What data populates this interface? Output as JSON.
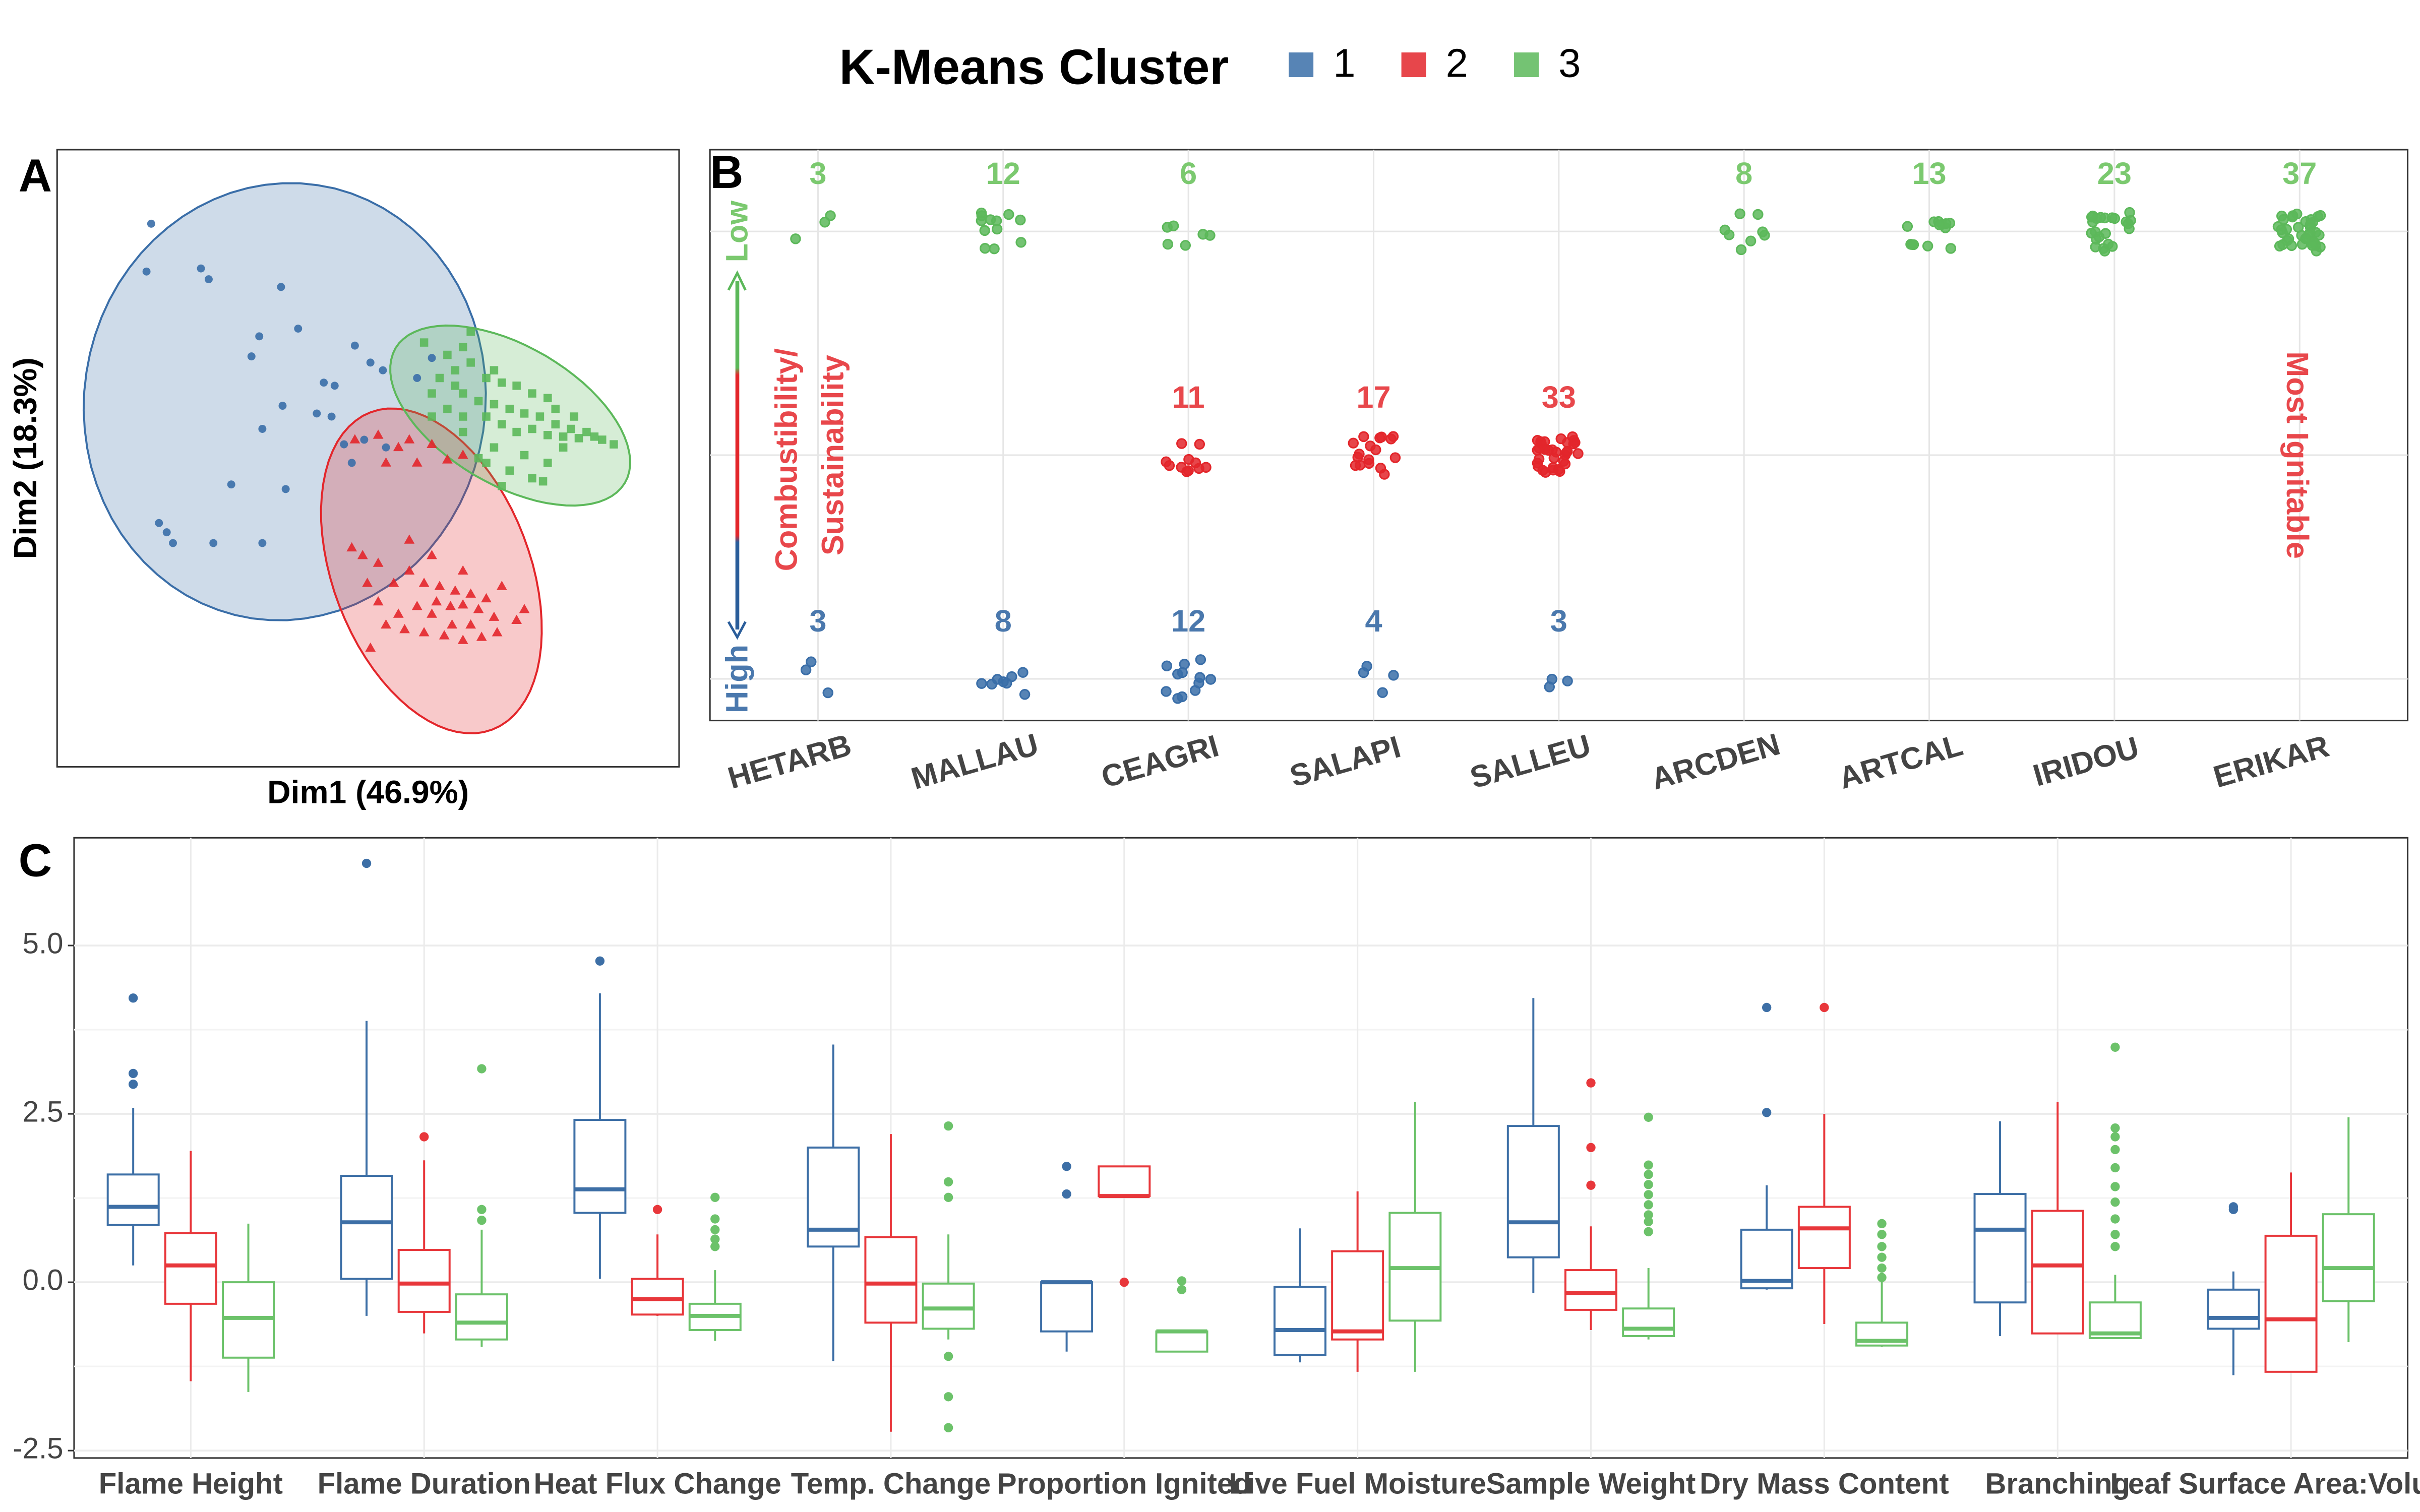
{
  "legend": {
    "title": "K-Means Cluster"
  },
  "chart_data": [
    {
      "type": "scatter",
      "panel_label": "A",
      "x_label": "Dim1 (46.9%)",
      "y_label": "Dim2 (18.3%)",
      "xlim": [
        -4,
        4
      ],
      "ylim": [
        -4,
        4
      ],
      "ellipses": true,
      "series": [
        {
          "name": "1",
          "color": "#3a6ea8",
          "marker": "circle",
          "x": [
            -2.79,
            -2.85,
            -2.15,
            -2.05,
            -1.12,
            -1.4,
            -0.9,
            -1.5,
            -0.57,
            -0.43,
            -0.17,
            0.19,
            -0.66,
            -0.47,
            -1.1,
            -1.36,
            -0.31,
            -1.76,
            -1.06,
            -2.69,
            -2.59,
            -2.51,
            -1.99,
            -1.36,
            -0.05,
            0.23,
            0.63,
            0.82,
            0.03,
            -0.21
          ],
          "y": [
            3.04,
            2.42,
            2.46,
            2.32,
            2.22,
            1.58,
            1.68,
            1.32,
            0.98,
            0.94,
            1.46,
            1.14,
            0.58,
            0.54,
            0.68,
            0.38,
            0.18,
            -0.34,
            -0.4,
            -0.84,
            -0.96,
            -1.1,
            -1.1,
            -1.1,
            0.24,
            0.14,
            1.04,
            1.3,
            1.24,
            -0.06
          ]
        },
        {
          "name": "2",
          "color": "#e3262b",
          "marker": "triangle",
          "x": [
            -0.17,
            0.13,
            0.39,
            0.53,
            0.82,
            1.02,
            1.22,
            0.23,
            0.63,
            -0.21,
            -0.07,
            0.13,
            0.53,
            0.72,
            0.92,
            1.12,
            1.32,
            1.52,
            0.88,
            1.06,
            1.22,
            1.42,
            1.62,
            1.91,
            0.63,
            0.39,
            0.23,
            0.47,
            0.72,
            0.98,
            1.22,
            1.46,
            1.66,
            2.01,
            0.13,
            -0.01,
            0.33,
            0.53,
            0.82,
            0.03,
            1.22,
            1.72,
            1.08,
            1.32,
            0.82
          ],
          "y": [
            0.24,
            0.3,
            0.14,
            0.24,
            0.18,
            -0.02,
            0.04,
            -0.06,
            -0.06,
            -1.16,
            -1.26,
            -1.36,
            -1.46,
            -1.62,
            -1.66,
            -1.72,
            -1.76,
            -1.82,
            -1.86,
            -1.92,
            -1.9,
            -1.96,
            -2.06,
            -2.1,
            -1.92,
            -2.02,
            -2.16,
            -2.22,
            -2.26,
            -2.3,
            -2.36,
            -2.32,
            -2.26,
            -1.96,
            -1.86,
            -1.62,
            -1.62,
            -1.06,
            -1.26,
            -2.46,
            -1.46,
            -1.66,
            -2.16,
            -2.16,
            -2.02
          ]
        },
        {
          "name": "3",
          "color": "#5cb85a",
          "marker": "square",
          "x": [
            0.72,
            1.02,
            1.22,
            0.92,
            1.12,
            1.32,
            1.52,
            1.72,
            1.91,
            2.11,
            2.31,
            1.22,
            1.42,
            1.62,
            1.82,
            2.01,
            2.21,
            2.41,
            2.61,
            2.81,
            3.01,
            3.16,
            2.11,
            2.31,
            2.51,
            2.71,
            2.91,
            2.41,
            2.65,
            1.91,
            1.72,
            1.52,
            1.22,
            1.02,
            0.82,
            1.52,
            1.82,
            2.11,
            2.25,
            1.72,
            1.42,
            1.62,
            2.01,
            1.12,
            1.32,
            1.62,
            0.82,
            1.22,
            2.31,
            2.51
          ],
          "y": [
            1.5,
            1.34,
            1.44,
            1.04,
            1.14,
            1.24,
            1.04,
            0.98,
            0.94,
            0.84,
            0.78,
            0.84,
            0.74,
            0.7,
            0.64,
            0.58,
            0.54,
            0.44,
            0.38,
            0.34,
            0.24,
            0.18,
            0.38,
            0.3,
            0.28,
            0.26,
            0.28,
            0.64,
            0.54,
            0.34,
            0.44,
            0.54,
            0.54,
            0.64,
            0.84,
            -0.06,
            -0.16,
            -0.26,
            -0.3,
            -0.36,
            0.0,
            0.14,
            0.04,
            0.94,
            1.64,
            1.14,
            0.54,
            0.34,
            -0.06,
            0.14
          ]
        }
      ]
    },
    {
      "type": "strip",
      "panel_label": "B",
      "categories": [
        "HETARB",
        "MALLAU",
        "CEAGRI",
        "SALAPI",
        "SALLEU",
        "ARCDEN",
        "ARTCAL",
        "IRIDOU",
        "ERIKAR"
      ],
      "series": [
        {
          "color": "#3a6ea8",
          "label_color": "#4a78ad",
          "values": [
            3,
            8,
            12,
            4,
            3,
            null,
            null,
            null,
            null
          ]
        },
        {
          "color": "#e3262b",
          "label_color": "#e8474b",
          "values": [
            null,
            null,
            11,
            17,
            33,
            null,
            null,
            null,
            null
          ]
        },
        {
          "color": "#5cb85a",
          "label_color": "#7bc96f",
          "values": [
            3,
            12,
            6,
            null,
            null,
            8,
            13,
            23,
            37
          ]
        }
      ],
      "annotations": {
        "low": "Low",
        "high": "High",
        "axis_lines": [
          "Combustibility/",
          "Sustainability"
        ],
        "right": "Most Ignitable"
      },
      "grid": true
    },
    {
      "type": "box",
      "panel_label": "C",
      "categories": [
        "Flame Height",
        "Flame Duration",
        "Heat Flux Change",
        "Temp. Change",
        "Proportion Ignited",
        "Live Fuel Moisture",
        "Sample Weight",
        "Dry Mass Content",
        "Branching",
        "Leaf Surface Area:Volume"
      ],
      "ylim": [
        -2.61,
        6.6
      ],
      "yticks": [
        -2.5,
        {
          "value": 0,
          "label": "0.0"
        },
        2.5,
        {
          "value": 5,
          "label": "5.0"
        }
      ],
      "grid": true,
      "series": [
        {
          "color": "#3d6fa6",
          "boxes": [
            {
              "min": 0.25,
              "q1": 0.85,
              "median": 1.12,
              "q3": 1.6,
              "max": 2.59,
              "outliers": [
                2.94,
                3.1,
                4.22
              ]
            },
            {
              "min": -0.5,
              "q1": 0.05,
              "median": 0.89,
              "q3": 1.58,
              "max": 3.88,
              "outliers": [
                6.22
              ]
            },
            {
              "min": 0.05,
              "q1": 1.03,
              "median": 1.38,
              "q3": 2.41,
              "max": 4.29,
              "outliers": [
                4.77
              ]
            },
            {
              "min": -1.17,
              "q1": 0.53,
              "median": 0.78,
              "q3": 2.0,
              "max": 3.53,
              "outliers": []
            },
            {
              "min": -1.03,
              "q1": -0.73,
              "median": 0.0,
              "q3": 0.0,
              "max": 0.0,
              "outliers": [
                1.31,
                1.72
              ]
            },
            {
              "min": -1.19,
              "q1": -1.08,
              "median": -0.71,
              "q3": -0.07,
              "max": 0.8,
              "outliers": []
            },
            {
              "min": -0.16,
              "q1": 0.37,
              "median": 0.89,
              "q3": 2.32,
              "max": 4.22,
              "outliers": []
            },
            {
              "min": -0.11,
              "q1": -0.09,
              "median": 0.02,
              "q3": 0.78,
              "max": 1.44,
              "outliers": [
                2.52,
                4.08
              ]
            },
            {
              "min": -0.8,
              "q1": -0.3,
              "median": 0.78,
              "q3": 1.31,
              "max": 2.39,
              "outliers": []
            },
            {
              "min": -1.38,
              "q1": -0.69,
              "median": -0.53,
              "q3": -0.11,
              "max": 0.16,
              "outliers": [
                1.08,
                1.12
              ]
            }
          ]
        },
        {
          "color": "#e8373b",
          "boxes": [
            {
              "min": -1.47,
              "q1": -0.32,
              "median": 0.25,
              "q3": 0.73,
              "max": 1.95,
              "outliers": []
            },
            {
              "min": -0.76,
              "q1": -0.44,
              "median": -0.02,
              "q3": 0.48,
              "max": 1.81,
              "outliers": [
                2.16
              ]
            },
            {
              "min": -0.5,
              "q1": -0.48,
              "median": -0.25,
              "q3": 0.05,
              "max": 0.71,
              "outliers": [
                1.08
              ]
            },
            {
              "min": -2.22,
              "q1": -0.6,
              "median": -0.02,
              "q3": 0.67,
              "max": 2.2,
              "outliers": []
            },
            {
              "min": 1.28,
              "q1": 1.28,
              "median": 1.28,
              "q3": 1.72,
              "max": 1.72,
              "outliers": [
                0.0
              ]
            },
            {
              "min": -1.33,
              "q1": -0.85,
              "median": -0.73,
              "q3": 0.46,
              "max": 1.35,
              "outliers": []
            },
            {
              "min": -0.71,
              "q1": -0.41,
              "median": -0.16,
              "q3": 0.18,
              "max": 0.83,
              "outliers": [
                1.44,
                2.0,
                2.96
              ]
            },
            {
              "min": -0.62,
              "q1": 0.21,
              "median": 0.8,
              "q3": 1.12,
              "max": 2.5,
              "outliers": [
                4.08
              ]
            },
            {
              "min": -0.76,
              "q1": -0.76,
              "median": 0.25,
              "q3": 1.06,
              "max": 2.68,
              "outliers": []
            },
            {
              "min": -1.33,
              "q1": -1.33,
              "median": -0.55,
              "q3": 0.69,
              "max": 1.63,
              "outliers": []
            }
          ]
        },
        {
          "color": "#6cc26a",
          "boxes": [
            {
              "min": -1.63,
              "q1": -1.12,
              "median": -0.53,
              "q3": 0.0,
              "max": 0.87,
              "outliers": []
            },
            {
              "min": -0.96,
              "q1": -0.85,
              "median": -0.6,
              "q3": -0.18,
              "max": 0.78,
              "outliers": [
                0.92,
                1.08,
                3.17
              ]
            },
            {
              "min": -0.87,
              "q1": -0.71,
              "median": -0.5,
              "q3": -0.32,
              "max": 0.18,
              "outliers": [
                0.53,
                0.64,
                0.78,
                0.94,
                1.26
              ]
            },
            {
              "min": -0.85,
              "q1": -0.69,
              "median": -0.39,
              "q3": -0.02,
              "max": 0.71,
              "outliers": [
                1.26,
                1.49,
                2.32,
                -1.1,
                -1.7,
                -2.16
              ]
            },
            {
              "min": -1.03,
              "q1": -1.03,
              "median": -0.73,
              "q3": -0.73,
              "max": -0.73,
              "outliers": [
                -0.11,
                0.02
              ]
            },
            {
              "min": -1.33,
              "q1": -0.57,
              "median": 0.21,
              "q3": 1.03,
              "max": 2.68,
              "outliers": []
            },
            {
              "min": -0.85,
              "q1": -0.8,
              "median": -0.69,
              "q3": -0.39,
              "max": 0.21,
              "outliers": [
                0.75,
                0.9,
                1.0,
                1.15,
                1.3,
                1.45,
                1.6,
                1.74,
                2.45
              ]
            },
            {
              "min": -0.96,
              "q1": -0.94,
              "median": -0.87,
              "q3": -0.6,
              "max": 0.05,
              "outliers": [
                0.07,
                0.21,
                0.37,
                0.53,
                0.71,
                0.87
              ]
            },
            {
              "min": -0.83,
              "q1": -0.83,
              "median": -0.76,
              "q3": -0.3,
              "max": 0.11,
              "outliers": [
                0.53,
                0.71,
                0.94,
                1.19,
                1.42,
                1.7,
                1.97,
                2.16,
                2.29,
                3.49
              ]
            },
            {
              "min": -0.89,
              "q1": -0.28,
              "median": 0.21,
              "q3": 1.01,
              "max": 2.45,
              "outliers": []
            }
          ]
        }
      ]
    }
  ]
}
